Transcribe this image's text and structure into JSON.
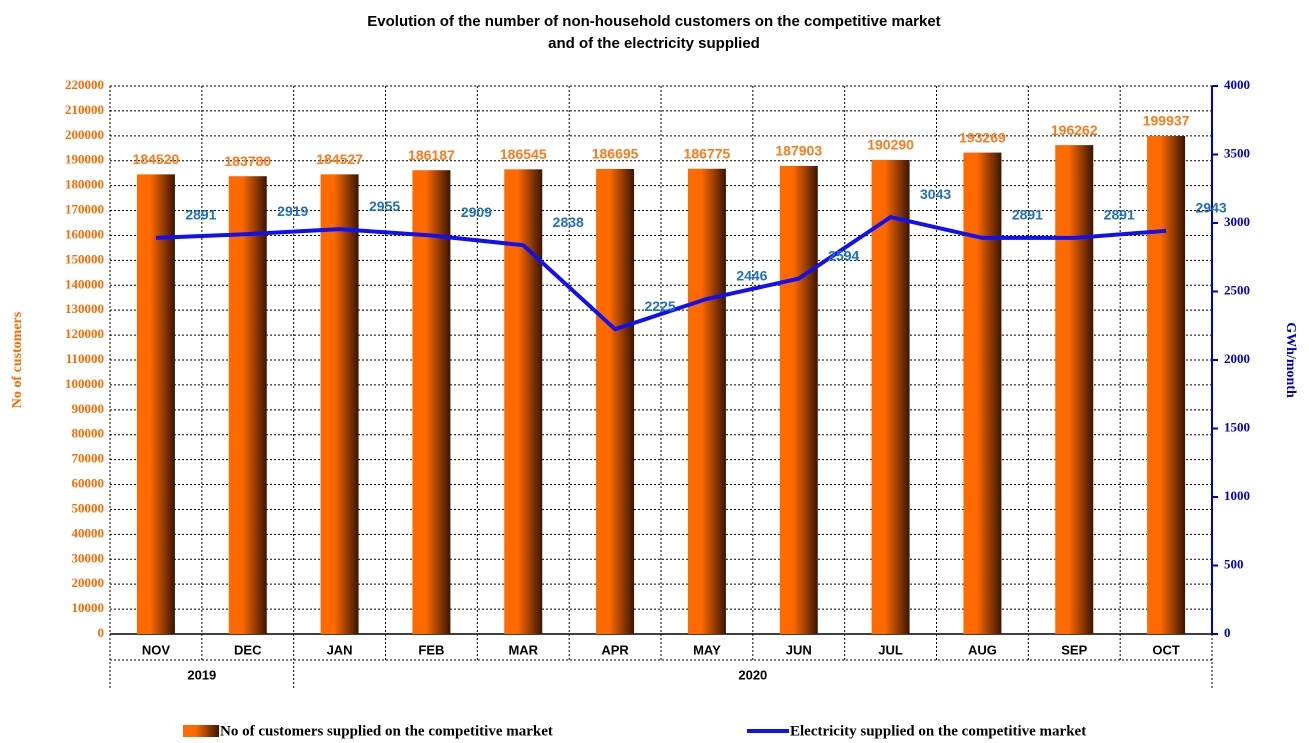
{
  "chart_data": {
    "type": "bar-line",
    "title": [
      "Evolution of the number of  non-household customers  on the competitive market",
      "and of the electricity supplied"
    ],
    "categories": [
      "NOV",
      "DEC",
      "JAN",
      "FEB",
      "MAR",
      "APR",
      "MAY",
      "JUN",
      "JUL",
      "AUG",
      "SEP",
      "OCT"
    ],
    "year_labels": [
      "2019",
      null,
      "2020",
      null,
      null,
      null,
      null,
      null,
      null,
      null,
      null,
      null
    ],
    "y_label": "No of customers",
    "y2_label": "GWh/month",
    "ylim": [
      0,
      220000
    ],
    "yticks": [
      0,
      10000,
      20000,
      30000,
      40000,
      50000,
      60000,
      70000,
      80000,
      90000,
      100000,
      110000,
      120000,
      130000,
      140000,
      150000,
      160000,
      170000,
      180000,
      190000,
      200000,
      210000,
      220000
    ],
    "y2lim": [
      0,
      4000
    ],
    "y2ticks": [
      0,
      500,
      1000,
      1500,
      2000,
      2500,
      3000,
      3500,
      4000
    ],
    "grid": true,
    "legend": "bottom",
    "y_color": "#ff6a00",
    "y2_color": "#0000cc",
    "series": [
      {
        "name": "No of  customers supplied on the competitive market",
        "type": "bar",
        "color": "#ff6a00",
        "label_color": "#ff7a1a",
        "values": [
          184520,
          183780,
          184527,
          186187,
          186545,
          186695,
          186775,
          187903,
          190290,
          193269,
          196262,
          199937
        ]
      },
      {
        "name": "Electricity supplied on the competitive market",
        "type": "line",
        "axis": "y2",
        "color": "#1010f0",
        "label_color": "#1f6fc5",
        "values": [
          2891,
          2919,
          2955,
          2909,
          2838,
          2225,
          2446,
          2594,
          3043,
          2891,
          2891,
          2943
        ]
      }
    ]
  }
}
